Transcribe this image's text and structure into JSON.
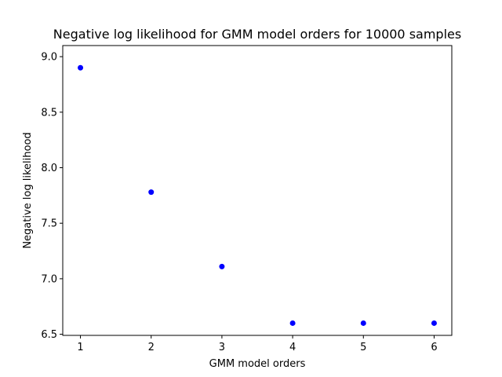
{
  "chart_data": {
    "type": "scatter",
    "title": "Negative log likelihood for GMM model orders for 10000 samples",
    "xlabel": "GMM model orders",
    "ylabel": "Negative log likelihood",
    "xlim": [
      0.75,
      6.25
    ],
    "ylim": [
      6.49,
      9.1
    ],
    "xticks": [
      1,
      2,
      3,
      4,
      5,
      6
    ],
    "yticks": [
      6.5,
      7.0,
      7.5,
      8.0,
      8.5,
      9.0
    ],
    "xtick_labels": [
      "1",
      "2",
      "3",
      "4",
      "5",
      "6"
    ],
    "ytick_labels": [
      "6.5",
      "7.0",
      "7.5",
      "8.0",
      "8.5",
      "9.0"
    ],
    "grid": false,
    "legend": false,
    "series": [
      {
        "color": "#0000ff",
        "x": [
          1,
          2,
          3,
          4,
          5,
          6
        ],
        "y": [
          8.9,
          7.78,
          7.11,
          6.6,
          6.6,
          6.6
        ]
      }
    ]
  }
}
